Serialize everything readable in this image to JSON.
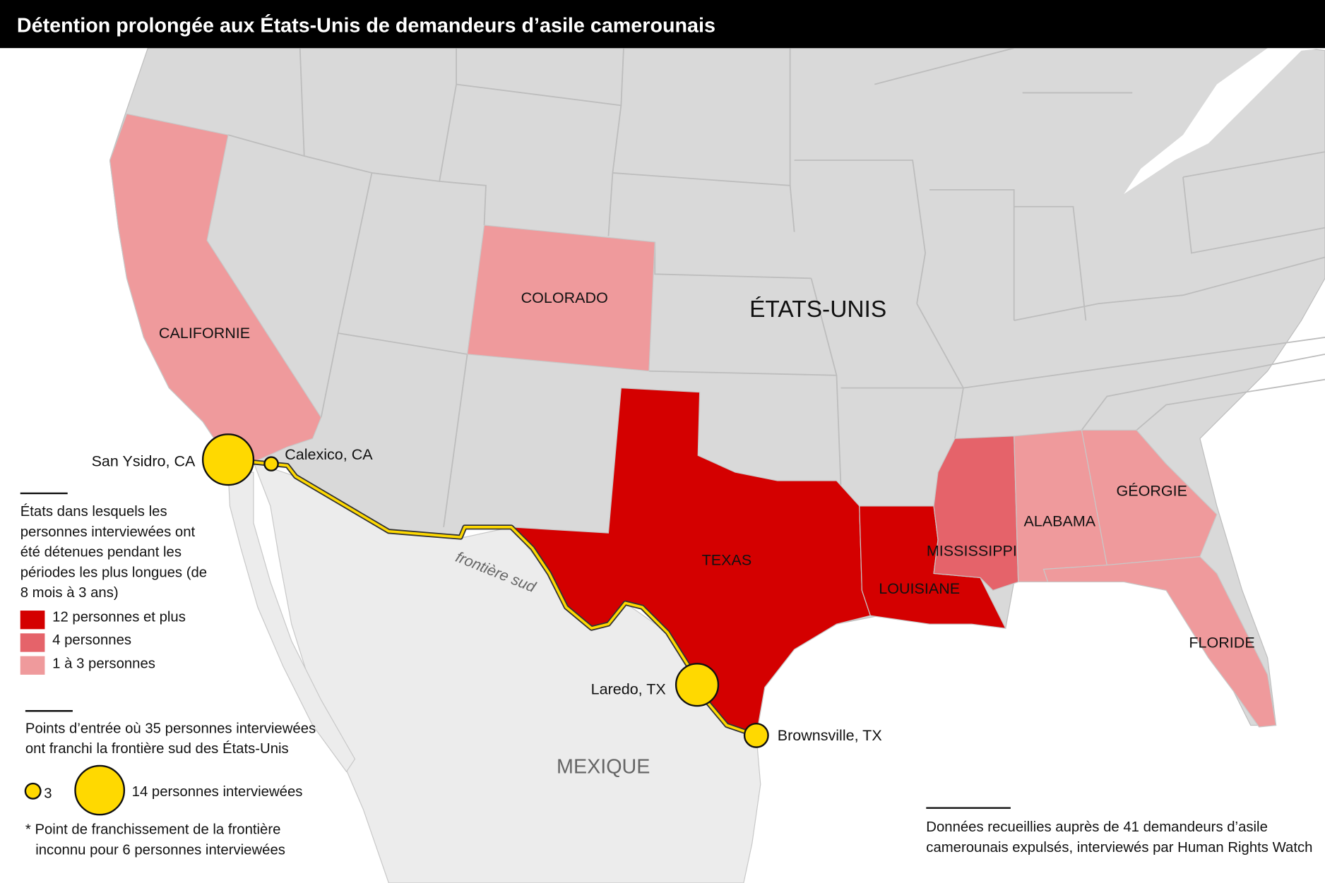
{
  "title": "Détention prolongée aux États-Unis de demandeurs d’asile camerounais",
  "colors": {
    "high": "#d40000",
    "mid": "#e5636a",
    "low": "#ef9a9c",
    "land": "#d9d9d9",
    "mexico": "#ececec",
    "marker": "#ffd900"
  },
  "map": {
    "country_us": "ÉTATS-UNIS",
    "country_mx": "MEXIQUE",
    "border_label": "frontière sud",
    "states": {
      "california": "CALIFORNIE",
      "colorado": "COLORADO",
      "texas": "TEXAS",
      "louisiana": "LOUISIANE",
      "mississippi": "MISSISSIPPI",
      "alabama": "ALABAMA",
      "georgia": "GÉORGIE",
      "florida": "FLORIDE"
    },
    "entry_points": [
      {
        "name": "San Ysidro, CA",
        "size": "large"
      },
      {
        "name": "Calexico, CA",
        "size": "small"
      },
      {
        "name": "Laredo, TX",
        "size": "large"
      },
      {
        "name": "Brownsville, TX",
        "size": "medium"
      }
    ]
  },
  "legend": {
    "states_heading": [
      "États dans lesquels les",
      "personnes interviewées ont",
      "été détenues pendant les",
      "périodes les plus longues (de",
      "8 mois à 3 ans)"
    ],
    "levels": [
      {
        "label": "12 personnes et plus",
        "level": "high"
      },
      {
        "label": "4 personnes",
        "level": "mid"
      },
      {
        "label": "1 à 3 personnes",
        "level": "low"
      }
    ],
    "points_heading": [
      "Points d’entrée où 35 personnes interviewées",
      "ont franchi la frontière sud des États-Unis"
    ],
    "small_value": "3",
    "large_value": "14 personnes interviewées",
    "footnote": [
      "* Point de franchissement de la frontière",
      "inconnu pour 6 personnes interviewées"
    ]
  },
  "source": [
    "Données recueillies auprès de 41 demandeurs d’asile",
    "camerounais expulsés, interviewés par Human Rights Watch"
  ]
}
